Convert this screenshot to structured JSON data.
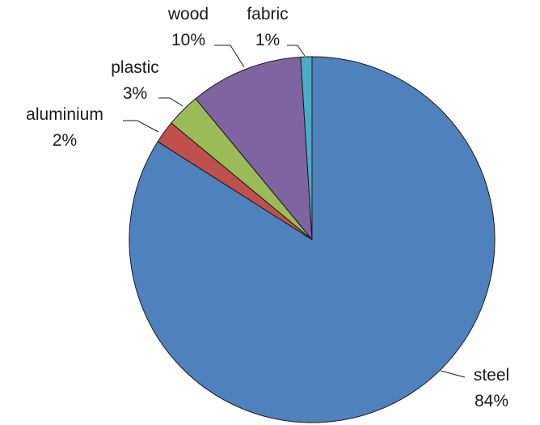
{
  "chart_data": {
    "type": "pie",
    "slices": [
      {
        "name": "steel",
        "value": 84,
        "label": "84%",
        "color": "#4F81BD"
      },
      {
        "name": "aluminium",
        "value": 2,
        "label": "2%",
        "color": "#C0504D"
      },
      {
        "name": "plastic",
        "value": 3,
        "label": "3%",
        "color": "#9BBB59"
      },
      {
        "name": "wood",
        "value": 10,
        "label": "10%",
        "color": "#8064A2"
      },
      {
        "name": "fabric",
        "value": 1,
        "label": "1%",
        "color": "#4BACC6"
      }
    ],
    "start_angle_deg": 0,
    "direction": "clockwise",
    "legend": "none",
    "data_labels": "outside with leader lines"
  }
}
